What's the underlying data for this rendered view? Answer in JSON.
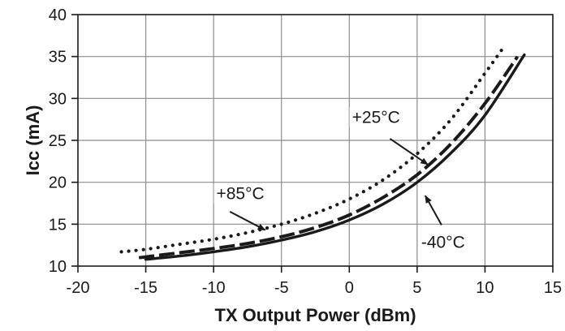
{
  "chart_data": {
    "type": "line",
    "xlabel": "TX Output  Power (dBm)",
    "ylabel": "Icc (mA)",
    "xlim": [
      -20,
      15
    ],
    "ylim": [
      10,
      40
    ],
    "x_ticks": [
      "-20",
      "-15",
      "-10",
      "-5",
      "0",
      "5",
      "10",
      "15"
    ],
    "y_ticks": [
      "10",
      "15",
      "20",
      "25",
      "30",
      "35",
      "40"
    ],
    "grid": true,
    "series": [
      {
        "name": "+85°C",
        "style": "dotted",
        "color": "#1a1a1a",
        "x": [
          -16.8,
          -15,
          -12.5,
          -10,
          -7.5,
          -5,
          -2.5,
          0,
          2.5,
          5,
          7.5,
          10,
          11.5
        ],
        "y": [
          11.7,
          12.0,
          12.6,
          13.2,
          14.0,
          15.0,
          16.3,
          18.0,
          20.3,
          23.4,
          27.5,
          33.0,
          36.4
        ]
      },
      {
        "name": "+25°C",
        "style": "dashed",
        "color": "#1a1a1a",
        "x": [
          -15.5,
          -12.5,
          -10,
          -7.5,
          -5,
          -2.5,
          0,
          2.5,
          5,
          7.5,
          10,
          12.4
        ],
        "y": [
          11.0,
          11.6,
          12.1,
          12.7,
          13.5,
          14.6,
          16.1,
          18.2,
          20.9,
          24.6,
          29.4,
          35.0
        ]
      },
      {
        "name": "-40°C",
        "style": "solid",
        "color": "#1a1a1a",
        "x": [
          -15,
          -12.5,
          -10,
          -7.5,
          -5,
          -2.5,
          0,
          2.5,
          5,
          7.5,
          10,
          12.9
        ],
        "y": [
          10.8,
          11.2,
          11.7,
          12.3,
          13.1,
          14.1,
          15.5,
          17.4,
          20.0,
          23.5,
          28.0,
          35.2
        ]
      }
    ],
    "annotations": [
      {
        "text": "+85°C",
        "series": "+85°C",
        "label_at": [
          -9.8,
          18.0
        ],
        "arrow_from": [
          -8.8,
          16.5
        ],
        "arrow_to": [
          -6.2,
          14.3
        ]
      },
      {
        "text": "+25°C",
        "series": "+25°C",
        "label_at": [
          0.2,
          27.1
        ],
        "arrow_from": [
          3.0,
          25.2
        ],
        "arrow_to": [
          5.8,
          22.1
        ]
      },
      {
        "text": "-40°C",
        "series": "-40°C",
        "label_at": [
          5.3,
          12.2
        ],
        "arrow_from": [
          6.8,
          14.9
        ],
        "arrow_to": [
          5.6,
          18.4
        ]
      }
    ]
  }
}
